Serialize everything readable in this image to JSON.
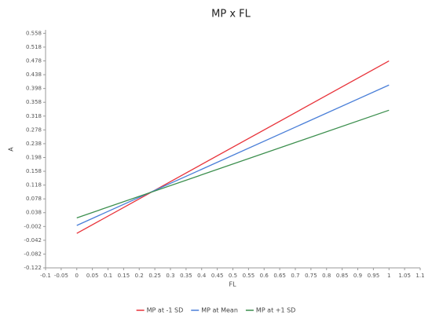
{
  "chart_data": {
    "type": "line",
    "title": "MP x FL",
    "x_label": "FL",
    "y_label": "A",
    "x": [
      0,
      1
    ],
    "series": [
      {
        "name": "MP at -1 SD",
        "color": "#e8333a",
        "values": [
          -0.022,
          0.478
        ]
      },
      {
        "name": "MP at Mean",
        "color": "#4a7fd8",
        "values": [
          0.001,
          0.408
        ]
      },
      {
        "name": "MP at +1 SD",
        "color": "#3c8f4e",
        "values": [
          0.023,
          0.335
        ]
      }
    ],
    "xlim": [
      -0.1,
      1.1
    ],
    "xticks": [
      -0.1,
      -0.05,
      0,
      0.05,
      0.1,
      0.15,
      0.2,
      0.25,
      0.3,
      0.35,
      0.4,
      0.45,
      0.5,
      0.55,
      0.6,
      0.65,
      0.7,
      0.75,
      0.8,
      0.85,
      0.9,
      0.95,
      1,
      1.05,
      1.1
    ],
    "ylim": [
      -0.122,
      0.568
    ],
    "yticks": [
      -0.122,
      -0.082,
      -0.042,
      -0.002,
      0.038,
      0.078,
      0.118,
      0.158,
      0.198,
      0.238,
      0.278,
      0.318,
      0.358,
      0.398,
      0.438,
      0.478,
      0.518,
      0.558
    ],
    "legend": "bottom"
  }
}
